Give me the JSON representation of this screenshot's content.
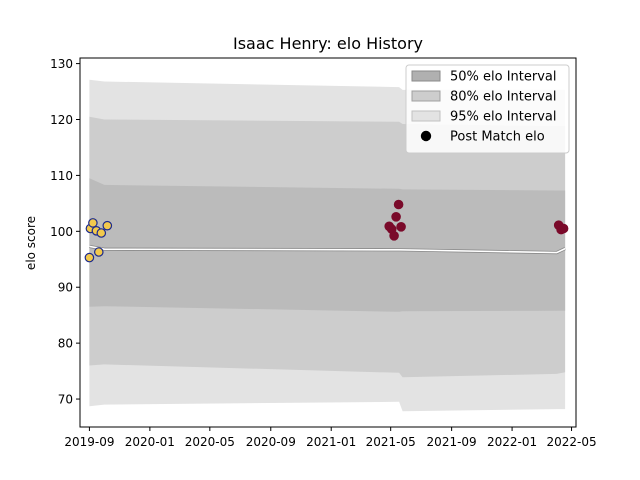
{
  "chart_data": {
    "type": "area",
    "title": "Isaac Henry: elo History",
    "xlabel": "",
    "ylabel": "elo score",
    "xlim": [
      "2019-08-13",
      "2022-05-10"
    ],
    "ylim": [
      65,
      131
    ],
    "x_ticks": [
      "2019-09",
      "2020-01",
      "2020-05",
      "2020-09",
      "2021-01",
      "2021-05",
      "2021-09",
      "2022-01",
      "2022-05"
    ],
    "y_ticks": [
      70,
      80,
      90,
      100,
      110,
      120,
      130
    ],
    "grid": false,
    "legend": {
      "placement": "top-right",
      "entries": [
        "50% elo Interval",
        "80% elo Interval",
        "95% elo Interval",
        "Post Match elo"
      ]
    },
    "bands": [
      {
        "name": "95% elo Interval",
        "color": "#e3e3e3",
        "points": [
          {
            "x": "2019-09-01",
            "lo": 68.7,
            "hi": 127.1
          },
          {
            "x": "2019-10-01",
            "lo": 69.0,
            "hi": 126.8
          },
          {
            "x": "2021-05-18",
            "lo": 69.5,
            "hi": 125.8
          },
          {
            "x": "2021-05-25",
            "lo": 67.8,
            "hi": 125.3
          },
          {
            "x": "2022-04-01",
            "lo": 68.2,
            "hi": 125.3
          },
          {
            "x": "2022-04-18",
            "lo": 68.2,
            "hi": 125.3
          }
        ]
      },
      {
        "name": "80% elo Interval",
        "color": "#cdcdcd",
        "points": [
          {
            "x": "2019-09-01",
            "lo": 76.0,
            "hi": 120.5
          },
          {
            "x": "2019-10-01",
            "lo": 76.2,
            "hi": 120.0
          },
          {
            "x": "2021-05-18",
            "lo": 74.7,
            "hi": 119.6
          },
          {
            "x": "2021-05-25",
            "lo": 73.9,
            "hi": 119.2
          },
          {
            "x": "2022-04-01",
            "lo": 74.5,
            "hi": 118.8
          },
          {
            "x": "2022-04-18",
            "lo": 74.8,
            "hi": 118.8
          }
        ]
      },
      {
        "name": "50% elo Interval",
        "color": "#bbbbbb",
        "points": [
          {
            "x": "2019-09-01",
            "lo": 86.5,
            "hi": 109.5
          },
          {
            "x": "2019-10-01",
            "lo": 86.6,
            "hi": 108.3
          },
          {
            "x": "2021-05-18",
            "lo": 85.6,
            "hi": 107.6
          },
          {
            "x": "2021-05-25",
            "lo": 85.7,
            "hi": 107.5
          },
          {
            "x": "2022-04-01",
            "lo": 85.8,
            "hi": 107.3
          },
          {
            "x": "2022-04-18",
            "lo": 85.8,
            "hi": 107.3
          }
        ]
      }
    ],
    "median_line": {
      "color": "#ffffff",
      "points": [
        {
          "x": "2019-09-01",
          "y": 97.3
        },
        {
          "x": "2019-10-01",
          "y": 96.8
        },
        {
          "x": "2021-05-18",
          "y": 96.7
        },
        {
          "x": "2022-04-01",
          "y": 96.2
        },
        {
          "x": "2022-04-18",
          "y": 96.9
        }
      ]
    },
    "series": [
      {
        "name": "Post Match elo",
        "fill": "#f2c94c",
        "stroke": "#1c2a8c",
        "points": [
          {
            "x": "2019-09-01",
            "y": 95.3
          },
          {
            "x": "2019-09-03",
            "y": 100.5
          },
          {
            "x": "2019-09-08",
            "y": 101.5
          },
          {
            "x": "2019-09-15",
            "y": 100.1
          },
          {
            "x": "2019-09-20",
            "y": 96.3
          },
          {
            "x": "2019-09-25",
            "y": 99.7
          },
          {
            "x": "2019-10-07",
            "y": 101.0
          }
        ]
      },
      {
        "name": "Post Match elo",
        "fill": "#7a0a2a",
        "stroke": "#7a0a2a",
        "points": [
          {
            "x": "2021-04-28",
            "y": 100.9
          },
          {
            "x": "2021-05-03",
            "y": 100.4
          },
          {
            "x": "2021-05-08",
            "y": 99.2
          },
          {
            "x": "2021-05-12",
            "y": 102.6
          },
          {
            "x": "2021-05-17",
            "y": 104.8
          },
          {
            "x": "2021-05-22",
            "y": 100.8
          },
          {
            "x": "2022-04-05",
            "y": 101.1
          },
          {
            "x": "2022-04-10",
            "y": 100.3
          },
          {
            "x": "2022-04-15",
            "y": 100.5
          }
        ]
      }
    ]
  }
}
